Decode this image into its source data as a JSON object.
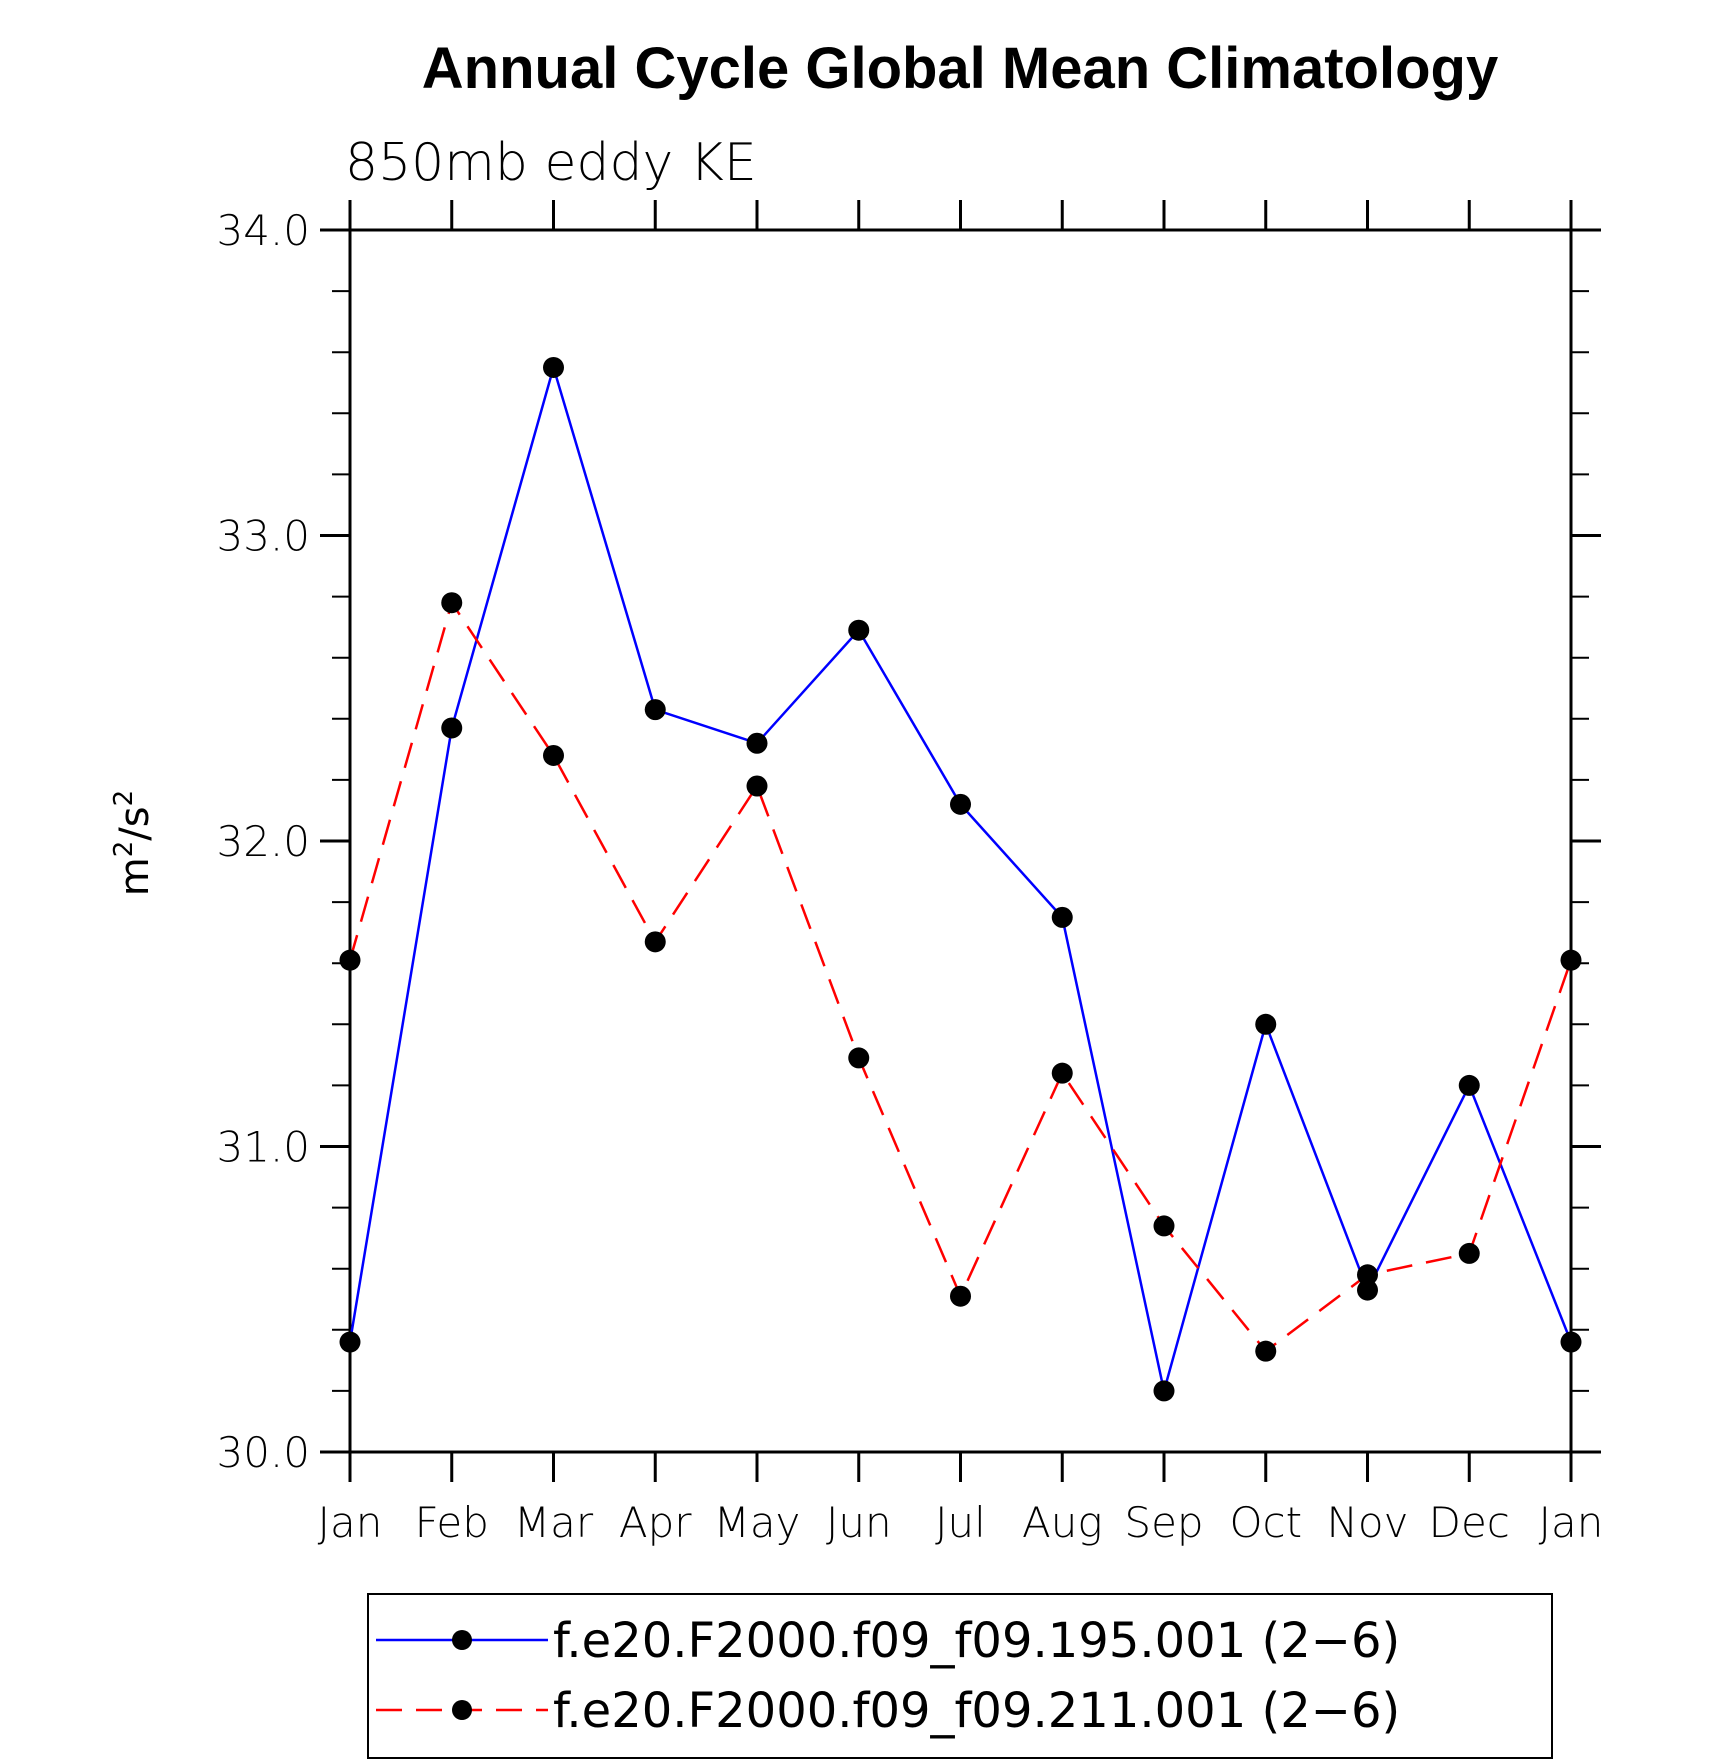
{
  "chart_data": {
    "type": "line",
    "title": "Annual Cycle Global Mean Climatology",
    "subtitle": "850mb eddy KE",
    "ylabel_base": "m",
    "ylabel_sup1": "2",
    "ylabel_mid": "/s",
    "ylabel_sup2": "2",
    "categories": [
      "Jan",
      "Feb",
      "Mar",
      "Apr",
      "May",
      "Jun",
      "Jul",
      "Aug",
      "Sep",
      "Oct",
      "Nov",
      "Dec",
      "Jan"
    ],
    "ylim": [
      30.0,
      34.0
    ],
    "yticks": [
      "30.0",
      "31.0",
      "32.0",
      "33.0",
      "34.0"
    ],
    "series": [
      {
        "name": "f.e20.F2000.f09_f09.195.001 (2−6)",
        "color": "#0000ff",
        "style": "solid",
        "values": [
          30.36,
          32.37,
          33.55,
          32.43,
          32.32,
          32.69,
          32.12,
          31.75,
          30.2,
          31.4,
          30.53,
          31.2,
          30.36
        ]
      },
      {
        "name": "f.e20.F2000.f09_f09.211.001 (2−6)",
        "color": "#ff0000",
        "style": "dashed",
        "values": [
          31.61,
          32.78,
          32.28,
          31.67,
          32.18,
          31.29,
          30.51,
          31.24,
          30.74,
          30.33,
          30.58,
          30.65,
          31.61
        ]
      }
    ],
    "grid": false,
    "legend_position": "bottom"
  }
}
